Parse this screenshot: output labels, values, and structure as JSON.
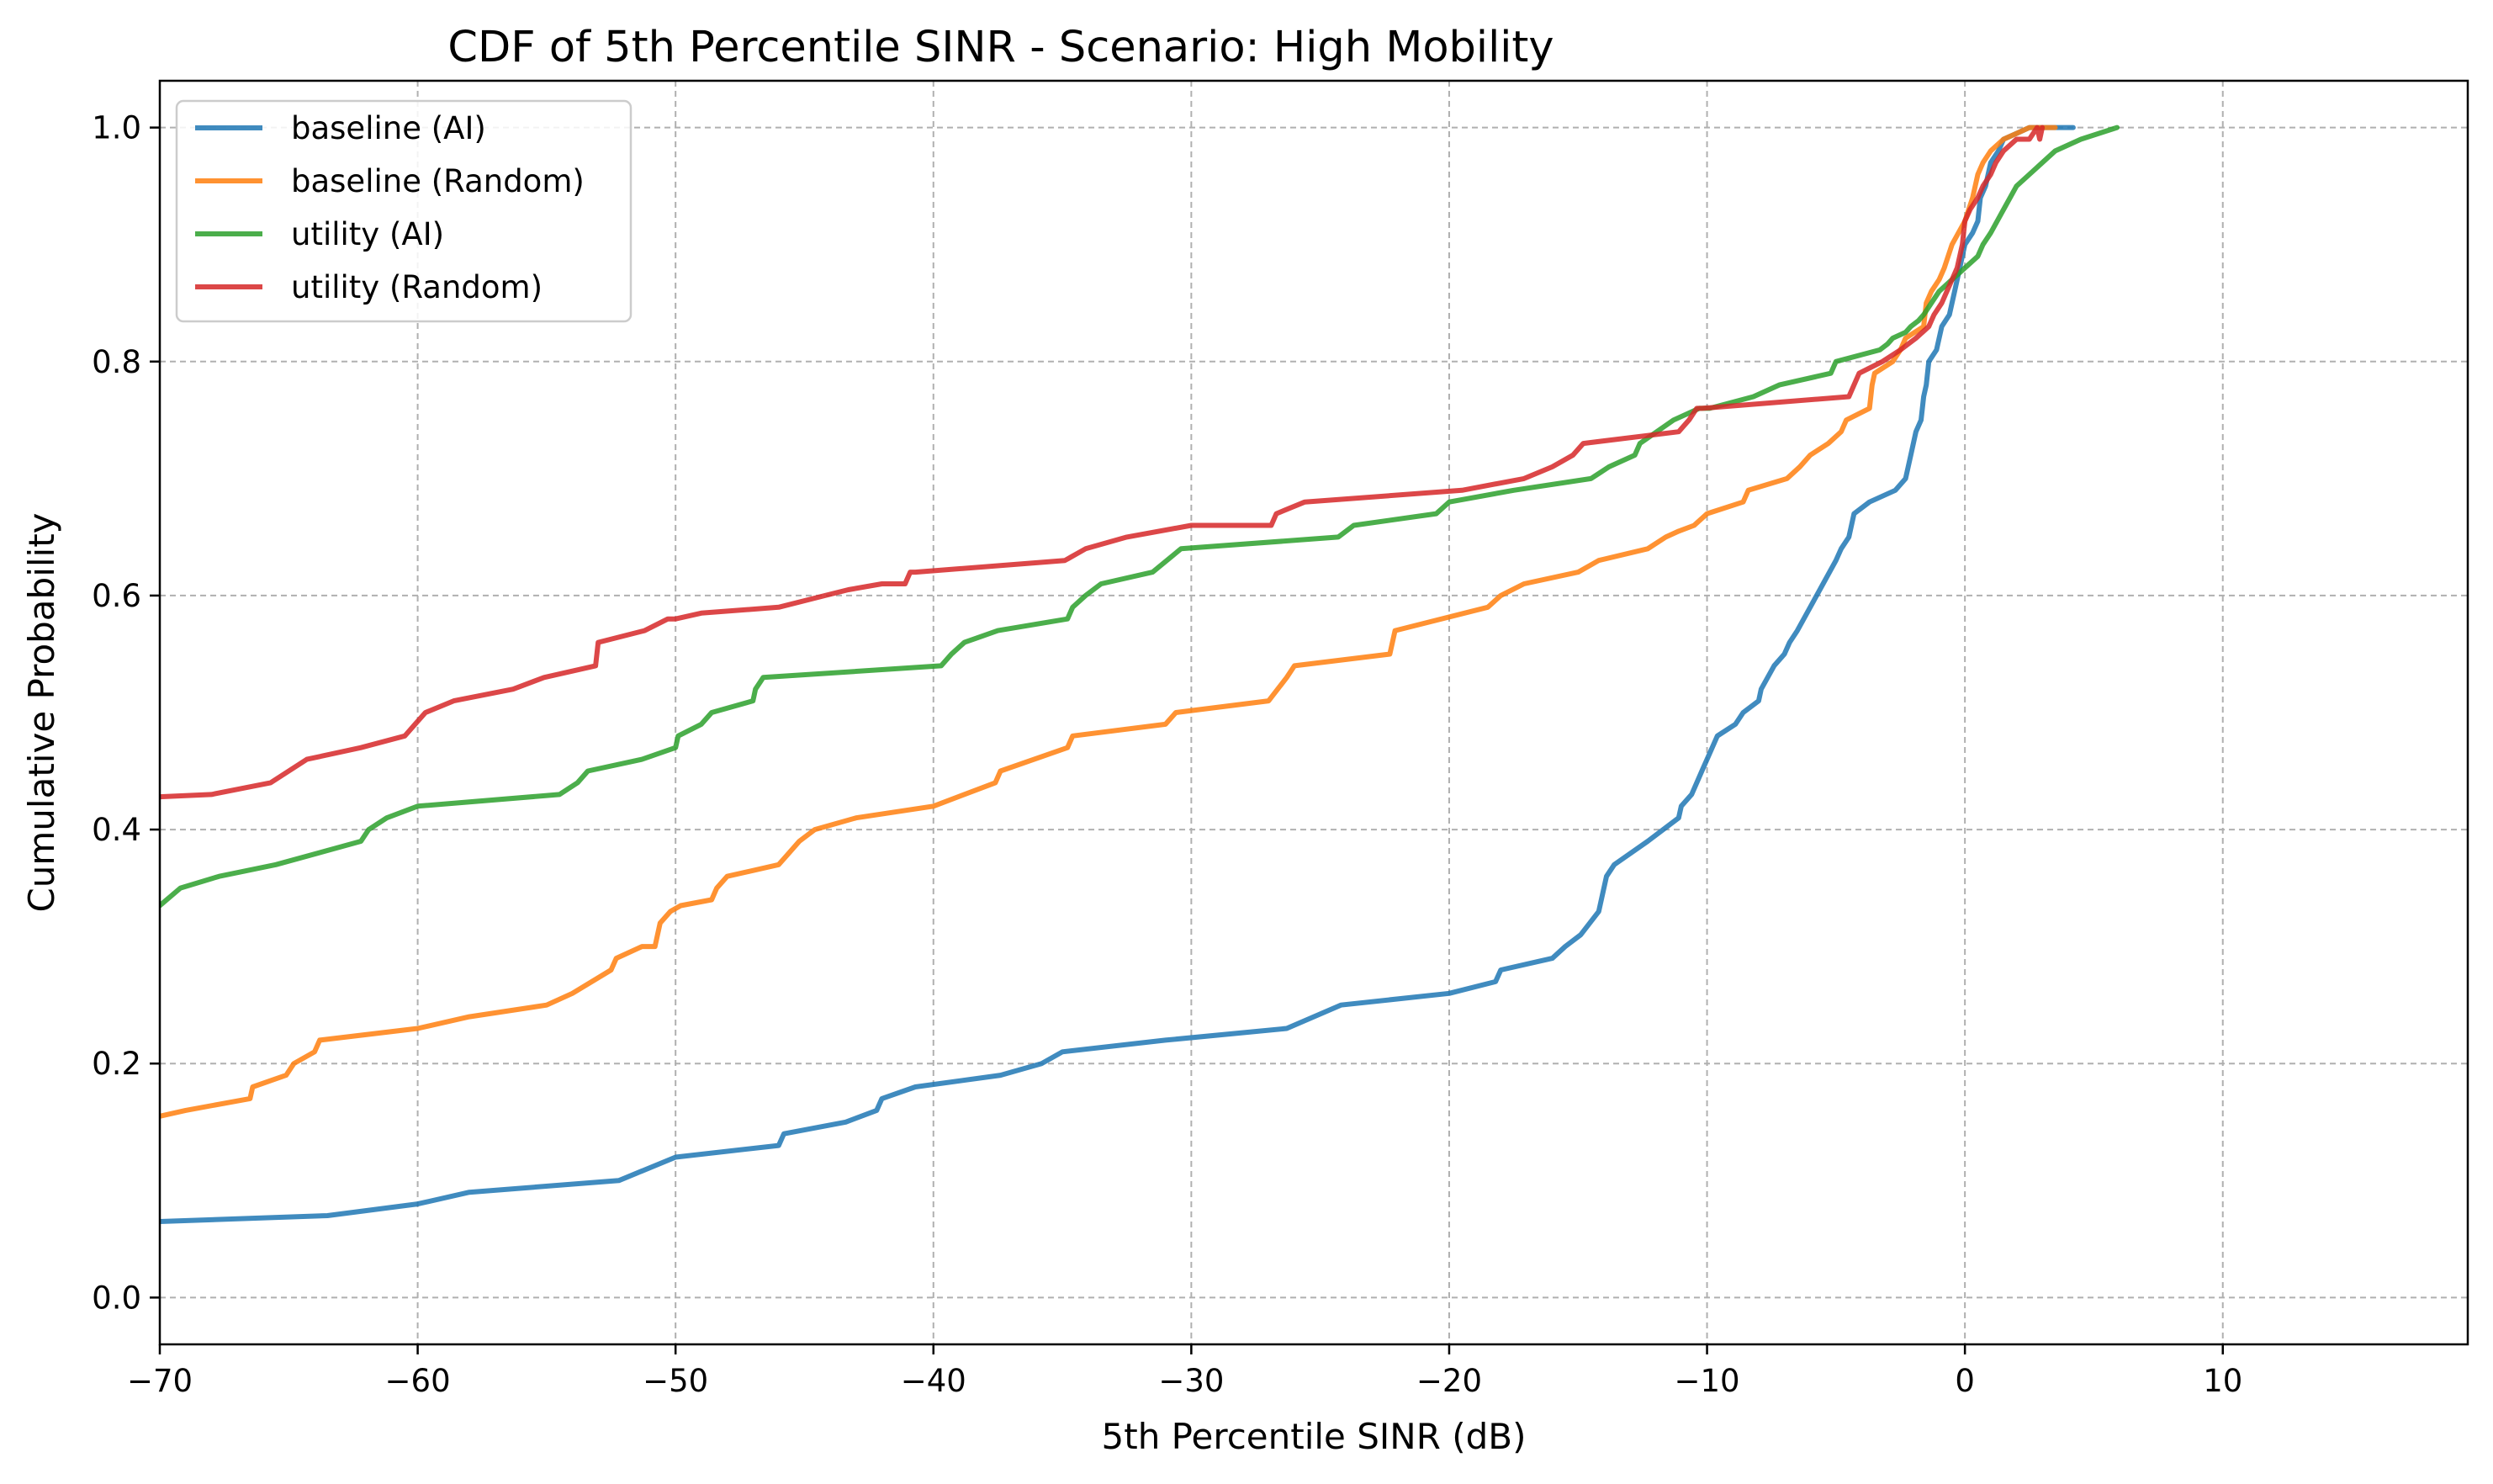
{
  "chart_data": {
    "type": "line",
    "title": "CDF of 5th Percentile SINR - Scenario: High Mobility",
    "xlabel": "5th Percentile SINR (dB)",
    "ylabel": "Cumulative Probability",
    "xlim": [
      -70,
      19.5
    ],
    "ylim": [
      -0.04,
      1.04
    ],
    "xticks": [
      -70,
      -60,
      -50,
      -40,
      -30,
      -20,
      -10,
      0,
      10
    ],
    "xtick_labels": [
      "−70",
      "−60",
      "−50",
      "−40",
      "−30",
      "−20",
      "−10",
      "0",
      "10"
    ],
    "yticks": [
      0.0,
      0.2,
      0.4,
      0.6,
      0.8,
      1.0
    ],
    "ytick_labels": [
      "0.0",
      "0.2",
      "0.4",
      "0.6",
      "0.8",
      "1.0"
    ],
    "grid": true,
    "legend_position": "top-left",
    "series": [
      {
        "name": "baseline (AI)",
        "color": "#1f77b4",
        "x": [
          -70,
          -63.5,
          -60,
          -58,
          -52.2,
          -50,
          -46,
          -45.8,
          -43.4,
          -42.2,
          -42,
          -40.7,
          -37.4,
          -35.8,
          -35,
          -31,
          -26.3,
          -24.2,
          -20,
          -18.2,
          -18,
          -16,
          -15.5,
          -14.9,
          -14.2,
          -13.9,
          -13.6,
          -12.3,
          -11.1,
          -11,
          -10.6,
          -10.2,
          -9.8,
          -9.6,
          -8.9,
          -8.6,
          -8,
          -7.9,
          -7.4,
          -7,
          -6.8,
          -6.5,
          -6,
          -5.5,
          -5,
          -4.8,
          -4.5,
          -4.3,
          -3.7,
          -2.7,
          -2.3,
          -2.1,
          -1.9,
          -1.7,
          -1.6,
          -1.5,
          -1.4,
          -1.1,
          -0.9,
          -0.6,
          -0.5,
          -0.4,
          -0.2,
          0.0,
          0.3,
          0.5,
          0.6,
          0.8,
          1.0,
          1.3,
          1.5,
          2.0,
          2.5,
          3.0,
          3.5,
          4.2
        ],
        "y": [
          0.065,
          0.07,
          0.08,
          0.09,
          0.1,
          0.12,
          0.13,
          0.14,
          0.15,
          0.16,
          0.17,
          0.18,
          0.19,
          0.2,
          0.21,
          0.22,
          0.23,
          0.25,
          0.26,
          0.27,
          0.28,
          0.29,
          0.3,
          0.31,
          0.33,
          0.36,
          0.37,
          0.39,
          0.41,
          0.42,
          0.43,
          0.45,
          0.47,
          0.48,
          0.49,
          0.5,
          0.51,
          0.52,
          0.54,
          0.55,
          0.56,
          0.57,
          0.59,
          0.61,
          0.63,
          0.64,
          0.65,
          0.67,
          0.68,
          0.69,
          0.7,
          0.72,
          0.74,
          0.75,
          0.77,
          0.78,
          0.8,
          0.81,
          0.83,
          0.84,
          0.85,
          0.86,
          0.88,
          0.9,
          0.91,
          0.92,
          0.94,
          0.95,
          0.97,
          0.98,
          0.99,
          0.995,
          1.0,
          1.0,
          1.0,
          1.0
        ]
      },
      {
        "name": "baseline (Random)",
        "color": "#ff7f0e",
        "x": [
          -70,
          -69,
          -66.5,
          -66.4,
          -65.1,
          -64.8,
          -64,
          -63.8,
          -60,
          -58,
          -55,
          -54,
          -52.5,
          -52.3,
          -51.3,
          -50.8,
          -50.6,
          -50.2,
          -49.8,
          -48.6,
          -48.4,
          -48,
          -46,
          -45.6,
          -45.2,
          -44.6,
          -43,
          -40,
          -37.6,
          -37.4,
          -34.8,
          -34.6,
          -31,
          -30.6,
          -27,
          -26.3,
          -26,
          -22.3,
          -22.1,
          -18.5,
          -18,
          -17.1,
          -15,
          -14.2,
          -12.3,
          -11.6,
          -11.1,
          -10.5,
          -10,
          -8.6,
          -8.4,
          -6.9,
          -6.4,
          -6,
          -5.3,
          -4.8,
          -4.6,
          -3.7,
          -3.6,
          -3.5,
          -2.8,
          -2.5,
          -2.3,
          -1.6,
          -1.5,
          -1.3,
          -1.0,
          -0.8,
          -0.5,
          0.0,
          0.3,
          0.5,
          0.7,
          1.0,
          1.5,
          2.0,
          2.5,
          3.0,
          3.5
        ],
        "y": [
          0.155,
          0.16,
          0.17,
          0.18,
          0.19,
          0.2,
          0.21,
          0.22,
          0.23,
          0.24,
          0.25,
          0.26,
          0.28,
          0.29,
          0.3,
          0.3,
          0.32,
          0.33,
          0.335,
          0.34,
          0.35,
          0.36,
          0.37,
          0.38,
          0.39,
          0.4,
          0.41,
          0.42,
          0.44,
          0.45,
          0.47,
          0.48,
          0.49,
          0.5,
          0.51,
          0.53,
          0.54,
          0.55,
          0.57,
          0.59,
          0.6,
          0.61,
          0.62,
          0.63,
          0.64,
          0.65,
          0.655,
          0.66,
          0.67,
          0.68,
          0.69,
          0.7,
          0.71,
          0.72,
          0.73,
          0.74,
          0.75,
          0.76,
          0.78,
          0.79,
          0.8,
          0.81,
          0.82,
          0.83,
          0.85,
          0.86,
          0.87,
          0.88,
          0.9,
          0.92,
          0.94,
          0.96,
          0.97,
          0.98,
          0.99,
          0.995,
          1.0,
          1.0,
          1.0
        ]
      },
      {
        "name": "utility (AI)",
        "color": "#2ca02c",
        "x": [
          -70,
          -69.2,
          -67.7,
          -65.5,
          -62.2,
          -61.9,
          -61.2,
          -60,
          -54.5,
          -53.8,
          -53.4,
          -51.3,
          -50,
          -49.9,
          -49,
          -48.6,
          -47,
          -46.9,
          -46.6,
          -39.7,
          -39.3,
          -38.8,
          -37.5,
          -34.8,
          -34.6,
          -34.1,
          -33.5,
          -31.5,
          -30.4,
          -24.3,
          -23.7,
          -20.5,
          -20,
          -17.5,
          -14.5,
          -13.8,
          -12.8,
          -12.6,
          -11.3,
          -10.3,
          -9.9,
          -8.2,
          -7.2,
          -5.2,
          -5,
          -3.3,
          -3.0,
          -2.8,
          -2.3,
          -2.1,
          -1.8,
          -1.6,
          -1.3,
          -1.0,
          -0.5,
          0.0,
          0.5,
          0.7,
          1.0,
          1.5,
          2.0,
          2.5,
          3.0,
          3.5,
          4.5,
          5.9
        ],
        "y": [
          0.335,
          0.35,
          0.36,
          0.37,
          0.39,
          0.4,
          0.41,
          0.42,
          0.43,
          0.44,
          0.45,
          0.46,
          0.47,
          0.48,
          0.49,
          0.5,
          0.51,
          0.52,
          0.53,
          0.54,
          0.55,
          0.56,
          0.57,
          0.58,
          0.59,
          0.6,
          0.61,
          0.62,
          0.64,
          0.65,
          0.66,
          0.67,
          0.68,
          0.69,
          0.7,
          0.71,
          0.72,
          0.73,
          0.75,
          0.76,
          0.76,
          0.77,
          0.78,
          0.79,
          0.8,
          0.81,
          0.815,
          0.82,
          0.825,
          0.83,
          0.835,
          0.84,
          0.85,
          0.86,
          0.87,
          0.88,
          0.89,
          0.9,
          0.91,
          0.93,
          0.95,
          0.96,
          0.97,
          0.98,
          0.99,
          1.0
        ]
      },
      {
        "name": "utility (Random)",
        "color": "#d62728",
        "x": [
          -70,
          -68,
          -65.7,
          -65,
          -64.3,
          -62.2,
          -60.5,
          -60.1,
          -59.7,
          -58.6,
          -56.3,
          -55.1,
          -53.1,
          -53,
          -51.2,
          -50.3,
          -50,
          -49,
          -46,
          -44.2,
          -43.3,
          -42,
          -41.1,
          -40.9,
          -40.7,
          -34.9,
          -34.1,
          -32.5,
          -30,
          -26.9,
          -26.7,
          -25.6,
          -19.5,
          -17.1,
          -16,
          -15.2,
          -14.8,
          -11.1,
          -10.7,
          -10.4,
          -10.2,
          -4.5,
          -4.1,
          -3.2,
          -2.5,
          -1.9,
          -1.4,
          -1.2,
          -0.9,
          -0.7,
          -0.5,
          -0.3,
          -0.1,
          0.0,
          0.2,
          0.5,
          0.7,
          1.0,
          1.2,
          1.5,
          2.0,
          2.5,
          2.8,
          2.9,
          3.0
        ],
        "y": [
          0.428,
          0.43,
          0.44,
          0.45,
          0.46,
          0.47,
          0.48,
          0.49,
          0.5,
          0.51,
          0.52,
          0.53,
          0.54,
          0.56,
          0.57,
          0.58,
          0.58,
          0.585,
          0.59,
          0.6,
          0.605,
          0.61,
          0.61,
          0.62,
          0.62,
          0.63,
          0.64,
          0.65,
          0.66,
          0.66,
          0.67,
          0.68,
          0.69,
          0.7,
          0.71,
          0.72,
          0.73,
          0.74,
          0.75,
          0.76,
          0.76,
          0.77,
          0.79,
          0.8,
          0.81,
          0.82,
          0.83,
          0.84,
          0.85,
          0.86,
          0.87,
          0.88,
          0.9,
          0.92,
          0.93,
          0.94,
          0.95,
          0.96,
          0.97,
          0.98,
          0.99,
          0.99,
          1.0,
          0.99,
          1.0
        ]
      }
    ]
  }
}
